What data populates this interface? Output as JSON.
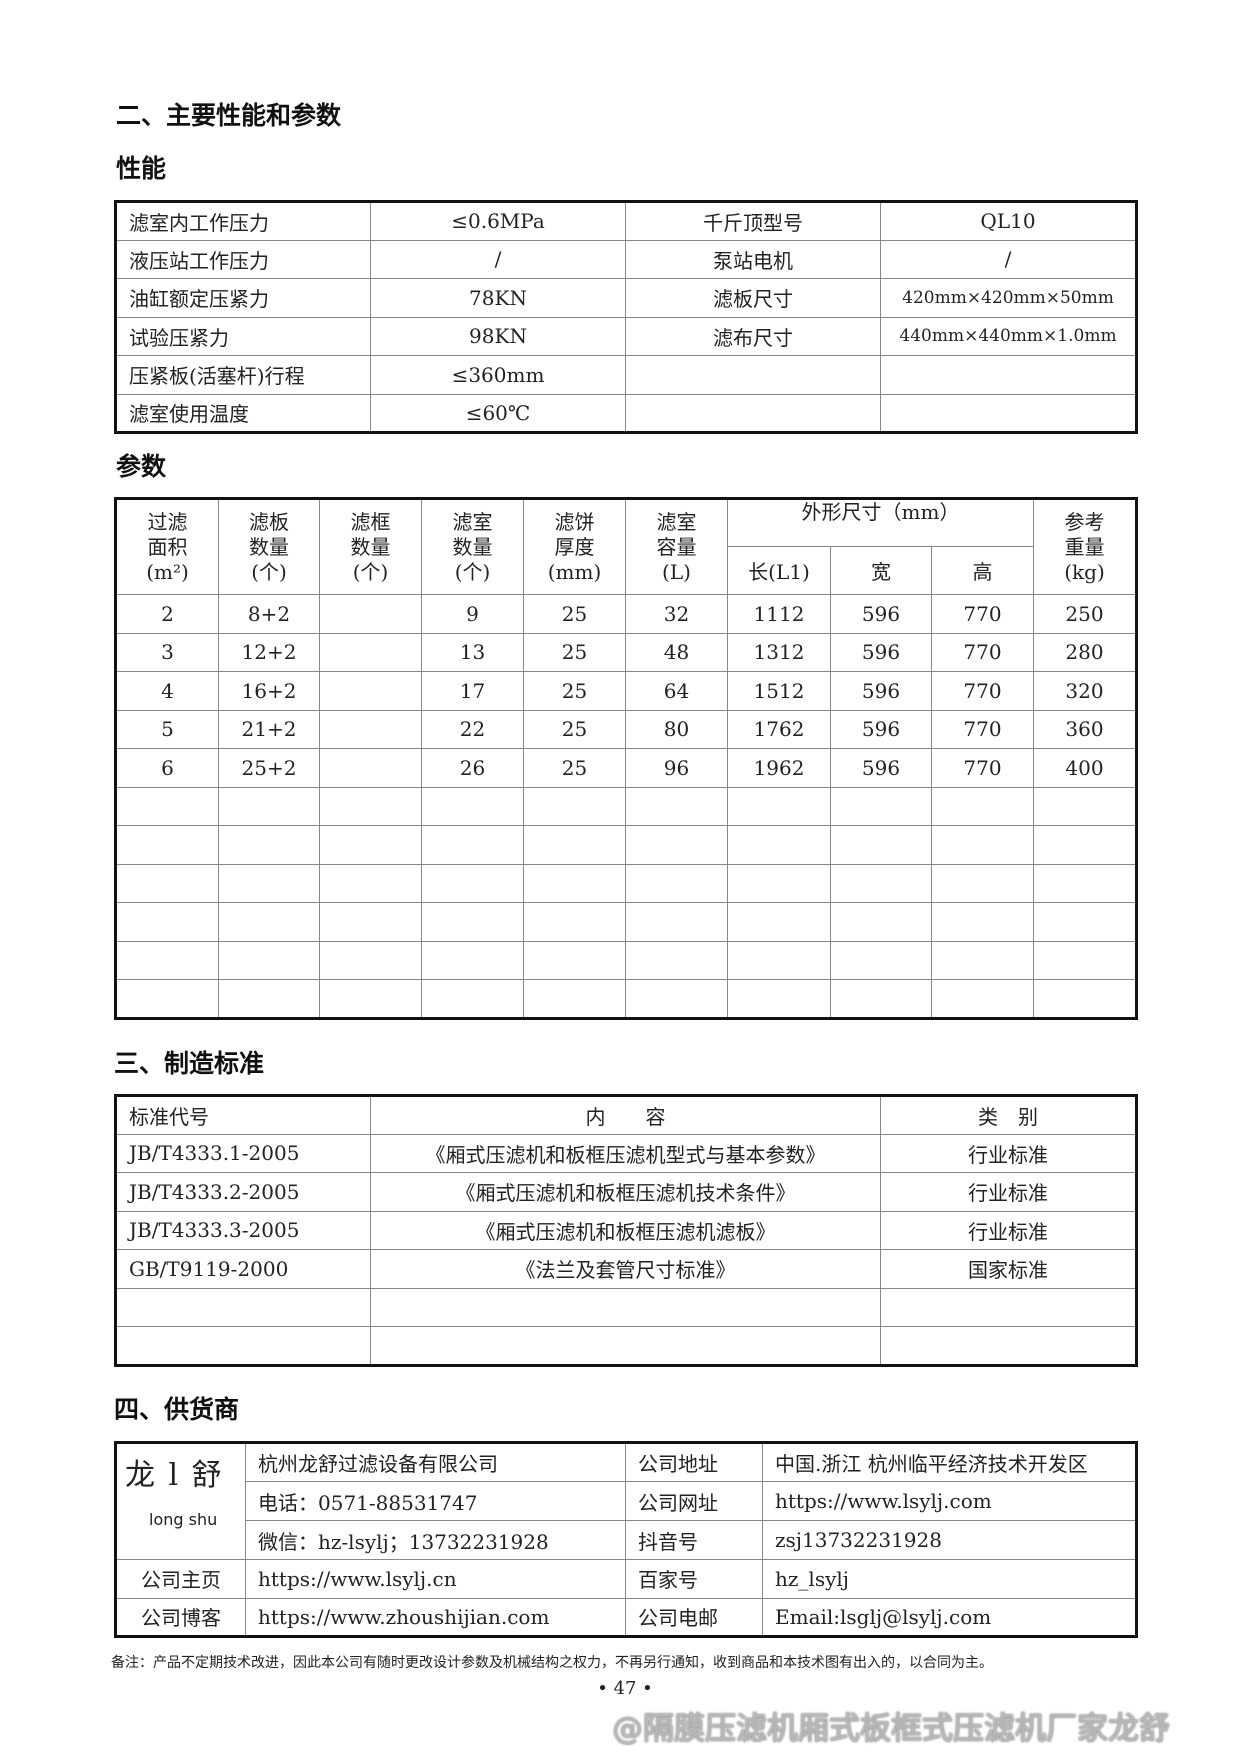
{
  "section2": {
    "title": "二、主要性能和参数",
    "perf_title": "性能",
    "param_title": "参数"
  },
  "performance": [
    [
      "滤室内工作压力",
      "≤0.6MPa",
      "千斤顶型号",
      "QL10"
    ],
    [
      "液压站工作压力",
      "/",
      "泵站电机",
      "/"
    ],
    [
      "油缸额定压紧力",
      "78KN",
      "滤板尺寸",
      "420mm×420mm×50mm"
    ],
    [
      "试验压紧力",
      "98KN",
      "滤布尺寸",
      "440mm×440mm×1.0mm"
    ],
    [
      "压紧板(活塞杆)行程",
      "≤360mm",
      "",
      ""
    ],
    [
      "滤室使用温度",
      "≤60℃",
      "",
      ""
    ]
  ],
  "params": {
    "headers": [
      "过滤\n面积\n(m²)",
      "滤板\n数量\n(个)",
      "滤框\n数量\n(个)",
      "滤室\n数量\n(个)",
      "滤饼\n厚度\n(mm)",
      "滤室\n容量\n(L)",
      "外形尺寸（mm）",
      "参考\n重量\n(kg)"
    ],
    "sub_headers": [
      "长(L1)",
      "宽",
      "高"
    ],
    "rows": [
      [
        "2",
        "8+2",
        "",
        "9",
        "25",
        "32",
        "1112",
        "596",
        "770",
        "250"
      ],
      [
        "3",
        "12+2",
        "",
        "13",
        "25",
        "48",
        "1312",
        "596",
        "770",
        "280"
      ],
      [
        "4",
        "16+2",
        "",
        "17",
        "25",
        "64",
        "1512",
        "596",
        "770",
        "320"
      ],
      [
        "5",
        "21+2",
        "",
        "22",
        "25",
        "80",
        "1762",
        "596",
        "770",
        "360"
      ],
      [
        "6",
        "25+2",
        "",
        "26",
        "25",
        "96",
        "1962",
        "596",
        "770",
        "400"
      ],
      [
        "",
        "",
        "",
        "",
        "",
        "",
        "",
        "",
        "",
        ""
      ],
      [
        "",
        "",
        "",
        "",
        "",
        "",
        "",
        "",
        "",
        ""
      ],
      [
        "",
        "",
        "",
        "",
        "",
        "",
        "",
        "",
        "",
        ""
      ],
      [
        "",
        "",
        "",
        "",
        "",
        "",
        "",
        "",
        "",
        ""
      ],
      [
        "",
        "",
        "",
        "",
        "",
        "",
        "",
        "",
        "",
        ""
      ],
      [
        "",
        "",
        "",
        "",
        "",
        "",
        "",
        "",
        "",
        ""
      ]
    ]
  },
  "section3": {
    "title": "三、制造标准",
    "headers": [
      "标准代号",
      "内　　容",
      "类　别"
    ],
    "rows": [
      [
        "JB/T4333.1-2005",
        "《厢式压滤机和板框压滤机型式与基本参数》",
        "行业标准"
      ],
      [
        "JB/T4333.2-2005",
        "《厢式压滤机和板框压滤机技术条件》",
        "行业标准"
      ],
      [
        "JB/T4333.3-2005",
        "《厢式压滤机和板框压滤机滤板》",
        "行业标准"
      ],
      [
        "GB/T9119-2000",
        "《法兰及套管尺寸标准》",
        "国家标准"
      ],
      [
        "",
        "",
        ""
      ],
      [
        "",
        "",
        ""
      ]
    ]
  },
  "section4": {
    "title": "四、供货商",
    "logo_cn": "龙 l 舒",
    "logo_en": "long shu",
    "rows": [
      [
        "",
        "杭州龙舒过滤设备有限公司",
        "公司地址",
        "中国.浙江 杭州临平经济技术开发区"
      ],
      [
        "",
        "电话：0571-88531747",
        "公司网址",
        "https://www.lsylj.com"
      ],
      [
        "",
        "微信：hz-lsylj；13732231928",
        "抖音号",
        "zsj13732231928"
      ],
      [
        "公司主页",
        "https://www.lsylj.cn",
        "百家号",
        "hz_lsylj"
      ],
      [
        "公司博客",
        "https://www.zhoushijian.com",
        "公司电邮",
        "Email:lsglj@lsylj.com"
      ]
    ]
  },
  "note": "备注：产品不定期技术改进，因此本公司有随时更改设计参数及机械结构之权力，不再另行通知，收到商品和本技术图有出入的，以合同为主。",
  "page_number": "• 47 •",
  "watermark": "@隔膜压滤机厢式板框式压滤机厂家龙舒"
}
